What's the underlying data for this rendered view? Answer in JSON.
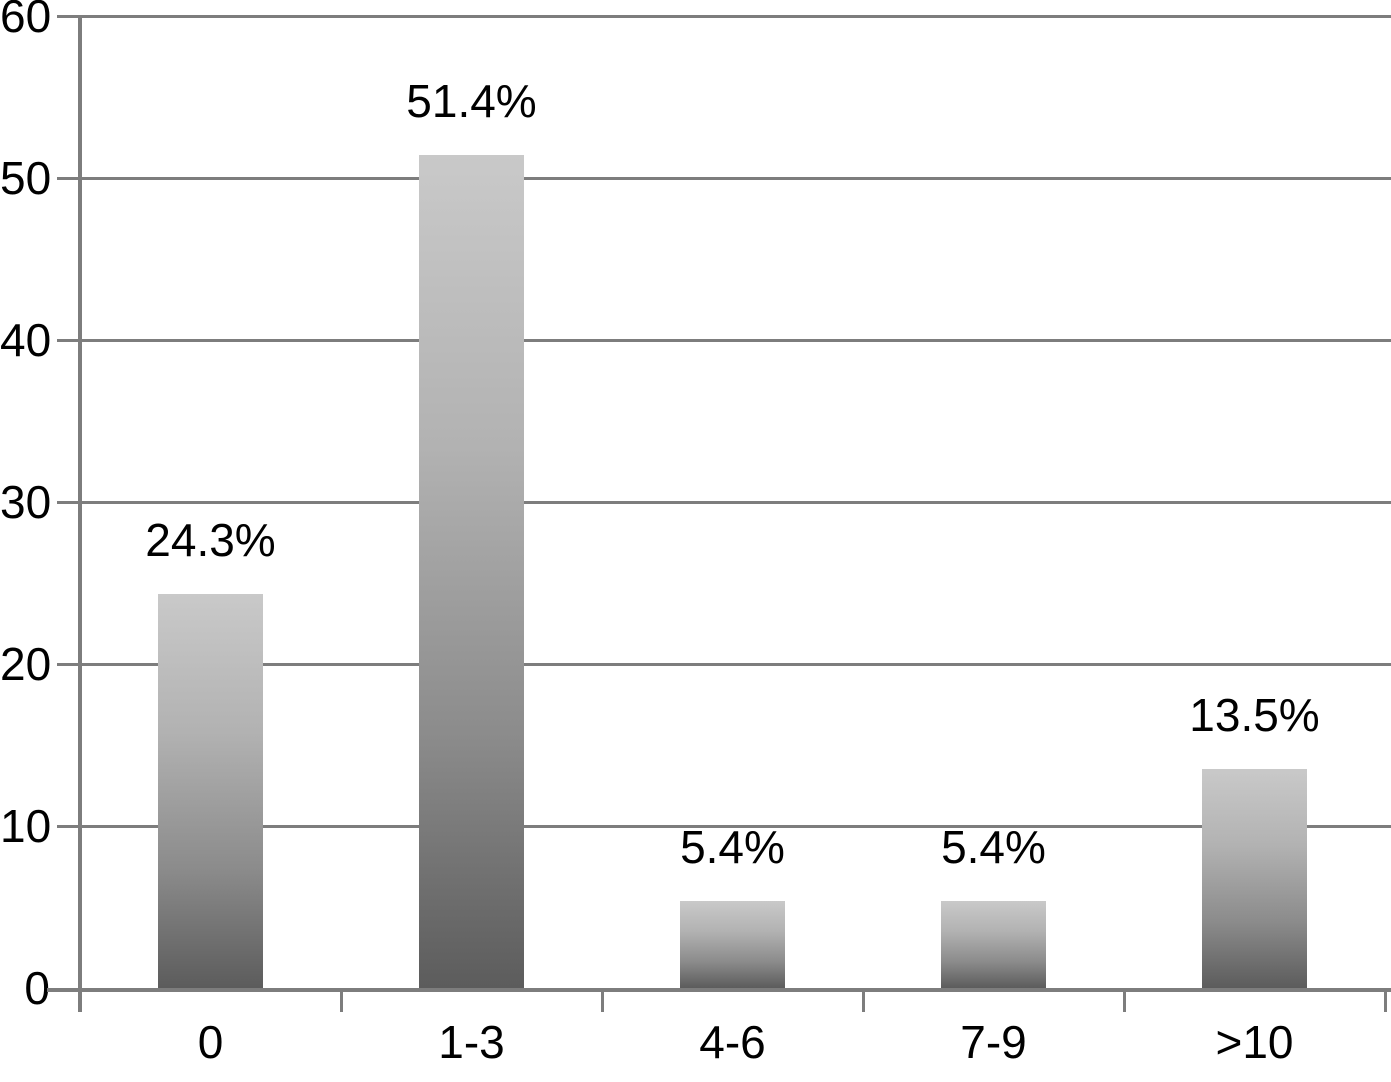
{
  "chart_data": {
    "type": "bar",
    "title": "",
    "xlabel": "",
    "ylabel": "",
    "categories": [
      "0",
      "1-3",
      "4-6",
      "7-9",
      ">10"
    ],
    "values": [
      24.3,
      51.4,
      5.4,
      5.4,
      13.5
    ],
    "value_labels": [
      "24.3%",
      "51.4%",
      "5.4%",
      "5.4%",
      "13.5%"
    ],
    "y_ticks": [
      0,
      10,
      20,
      30,
      40,
      50,
      60
    ],
    "y_tick_labels": [
      "0",
      "10",
      "20",
      "30",
      "40",
      "50",
      "60"
    ],
    "ylim": [
      0,
      60
    ],
    "grid": true,
    "legend": "none",
    "colors": {
      "background": "#ffffff",
      "grid_line": "#7d7d7d",
      "axis_line": "#7d7d7d",
      "text": "#000000",
      "bar_gradient_top": "#c9c9c9",
      "bar_gradient_upper_mid": "#b2b2b2",
      "bar_gradient_lower_mid": "#8b8b8b",
      "bar_gradient_bottom": "#5c5c5c"
    }
  }
}
